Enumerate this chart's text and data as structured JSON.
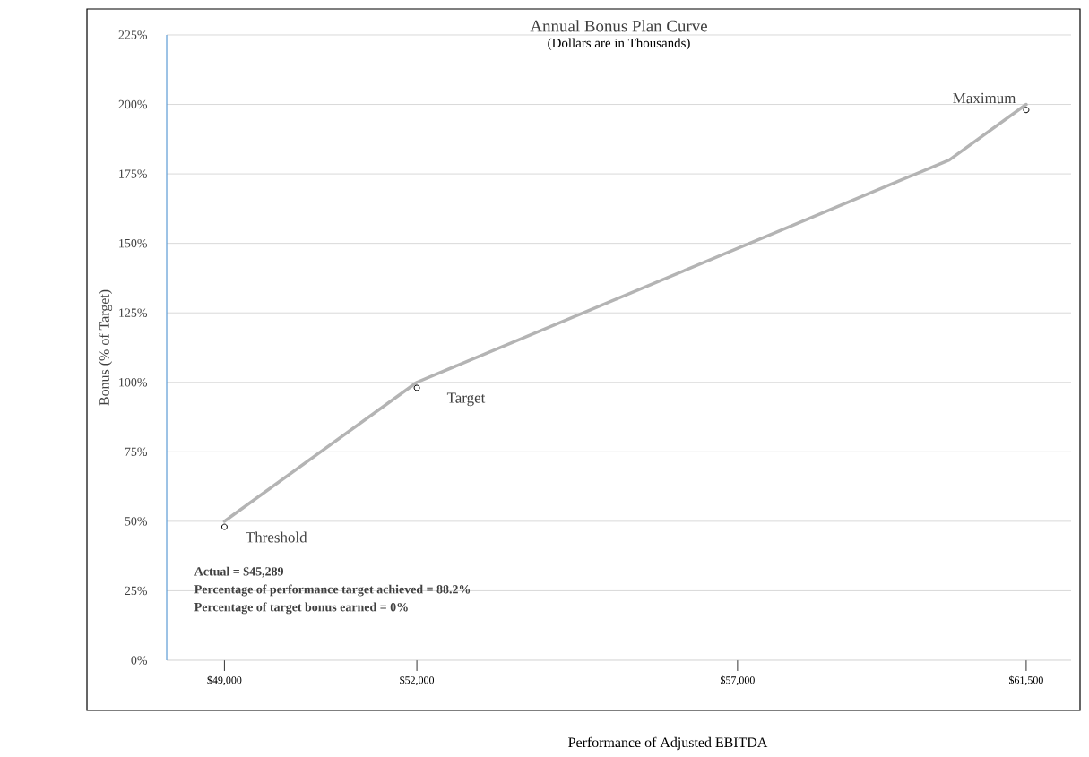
{
  "chart_data": {
    "type": "line",
    "title": "Annual Bonus Plan Curve",
    "subtitle": "(Dollars are in Thousands)",
    "xlabel": "Performance of Adjusted EBITDA",
    "ylabel": "Bonus (% of Target)",
    "series": [
      {
        "color": "#b4b4b4",
        "x": [
          49000,
          52000,
          60300,
          61500
        ],
        "values": [
          50,
          100,
          180,
          200
        ]
      },
      {
        "type": "scatter",
        "marker": "circle",
        "color": "#000000",
        "x": [
          49000,
          52000,
          61500
        ],
        "values": [
          48,
          98,
          198
        ]
      }
    ],
    "xlim": [
      48100,
      62200
    ],
    "xticks": [
      {
        "value": 49000,
        "label": "$49,000"
      },
      {
        "value": 52000,
        "label": "$52,000"
      },
      {
        "value": 57000,
        "label": "$57,000"
      },
      {
        "value": 61500,
        "label": "$61,500"
      }
    ],
    "ylim": [
      0,
      225
    ],
    "yticks": [
      {
        "value": 0,
        "label": "0%"
      },
      {
        "value": 25,
        "label": "25%"
      },
      {
        "value": 50,
        "label": "50%"
      },
      {
        "value": 75,
        "label": "75%"
      },
      {
        "value": 100,
        "label": "100%"
      },
      {
        "value": 125,
        "label": "125%"
      },
      {
        "value": 150,
        "label": "150%"
      },
      {
        "value": 175,
        "label": "175%"
      },
      {
        "value": 200,
        "label": "200%"
      },
      {
        "value": 225,
        "label": "225%"
      }
    ],
    "grid": "y",
    "annotations": [
      {
        "text": "Threshold",
        "x": 49000,
        "y": 48
      },
      {
        "text": "Target",
        "x": 52000,
        "y": 98
      },
      {
        "text": "Maximum",
        "x": 61500,
        "y": 198
      },
      "Actual = $45,289",
      "Percentage of performance target achieved = 88.2%",
      "Percentage of target bonus earned = 0%"
    ]
  }
}
